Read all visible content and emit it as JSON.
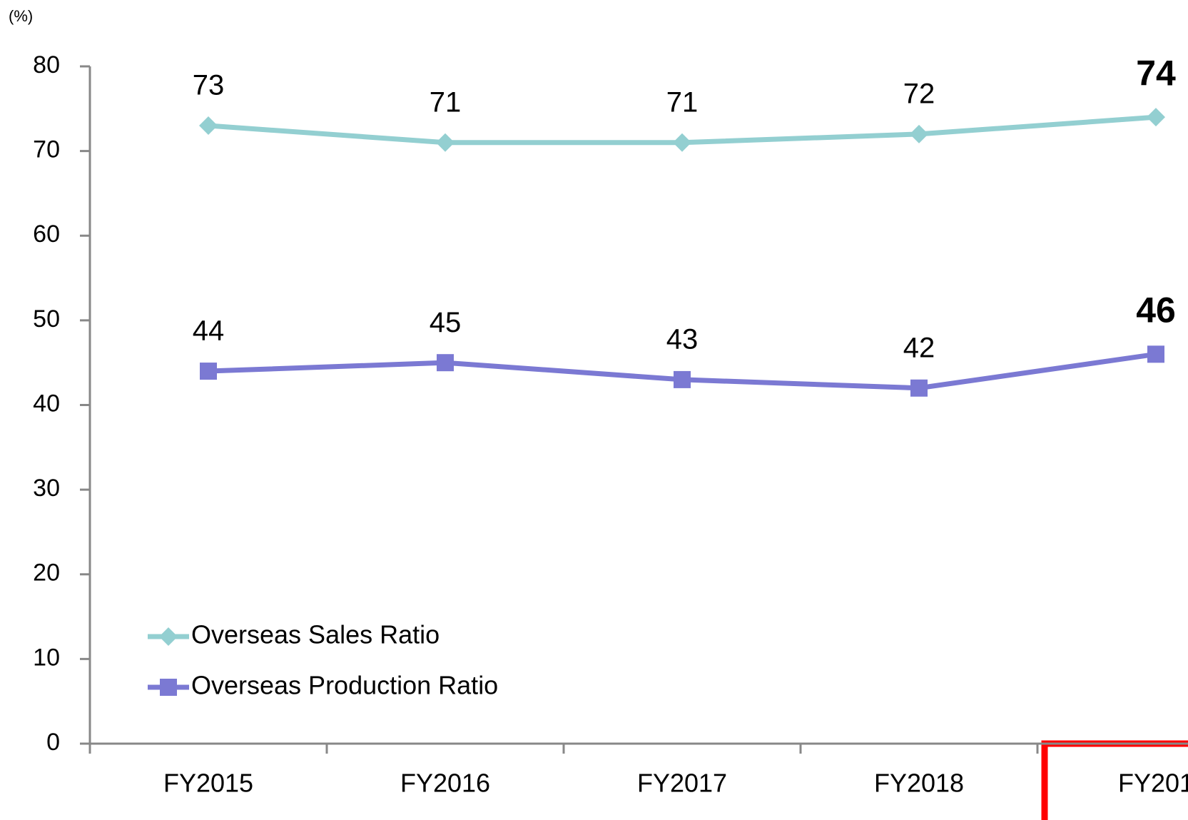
{
  "chart_data": {
    "type": "line",
    "unit_label": "(%)",
    "categories": [
      "FY2015",
      "FY2016",
      "FY2017",
      "FY2018",
      "FY201"
    ],
    "series": [
      {
        "name": "Overseas Sales Ratio",
        "color": "#93cfd1",
        "marker": "diamond",
        "values": [
          73,
          71,
          71,
          72,
          74
        ]
      },
      {
        "name": "Overseas Production Ratio",
        "color": "#7b79d3",
        "marker": "square",
        "values": [
          44,
          45,
          43,
          42,
          46
        ]
      }
    ],
    "ylim": [
      0,
      80
    ],
    "yticks": [
      0,
      10,
      20,
      30,
      40,
      50,
      60,
      70,
      80
    ],
    "legend": "lower left"
  }
}
